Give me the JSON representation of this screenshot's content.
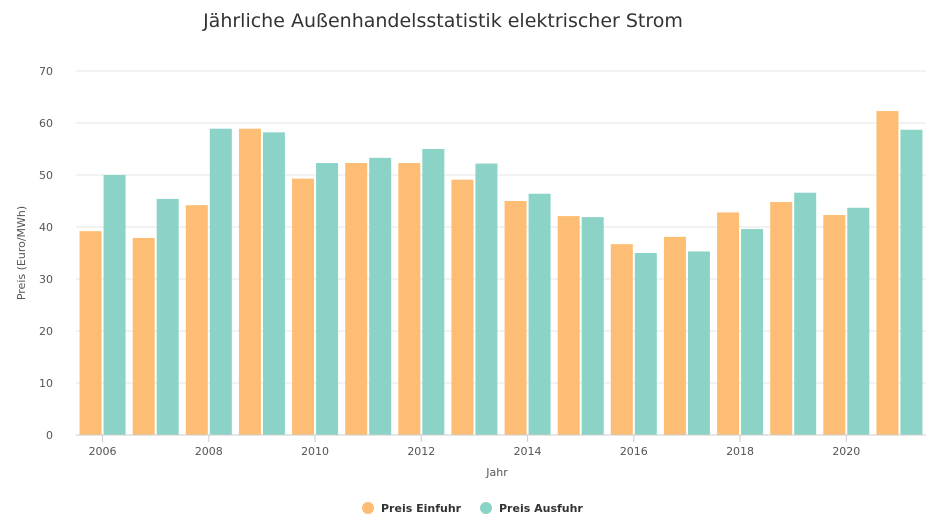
{
  "chart_data": {
    "type": "bar",
    "title": "Jährliche Außenhandelsstatistik elektrischer Strom",
    "xlabel": "Jahr",
    "ylabel": "Preis (Euro/MWh)",
    "ylim": [
      0,
      70
    ],
    "yticks": [
      "0",
      "10",
      "20",
      "30",
      "40",
      "50",
      "60",
      "70"
    ],
    "grid": true,
    "legend_position": "bottom-center",
    "categories": [
      2006,
      2007,
      2008,
      2009,
      2010,
      2011,
      2012,
      2013,
      2014,
      2015,
      2016,
      2017,
      2018,
      2019,
      2020,
      2021
    ],
    "xtick_labels": [
      "2006",
      "2008",
      "2010",
      "2012",
      "2014",
      "2016",
      "2018",
      "2020"
    ],
    "series": [
      {
        "name": "Preis Einfuhr",
        "color": "#fdbd74",
        "values": [
          39.2,
          37.9,
          44.2,
          58.9,
          49.3,
          52.3,
          52.3,
          49.1,
          45.0,
          42.1,
          36.7,
          38.1,
          42.8,
          44.8,
          42.3,
          62.3
        ]
      },
      {
        "name": "Preis Ausfuhr",
        "color": "#8ad3c6",
        "values": [
          50.0,
          45.4,
          58.9,
          58.2,
          52.3,
          53.3,
          55.0,
          52.2,
          46.4,
          41.9,
          35.0,
          35.3,
          39.6,
          46.6,
          43.7,
          58.7
        ]
      }
    ]
  }
}
